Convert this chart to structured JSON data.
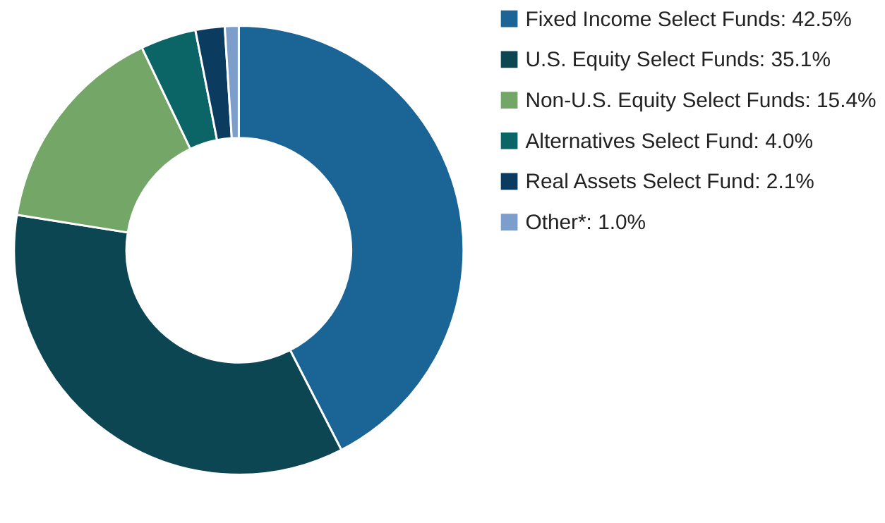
{
  "chart_data": {
    "type": "donut",
    "categories": [
      "Fixed Income Select Funds: 42.5%",
      "U.S. Equity Select Funds: 35.1%",
      "Non-U.S. Equity Select Funds: 15.4%",
      "Alternatives Select Fund: 4.0%",
      "Real Assets Select Fund: 2.1%",
      "Other*: 1.0%"
    ],
    "values": [
      42.5,
      35.1,
      15.4,
      4.0,
      2.1,
      1.0
    ],
    "colors": [
      "#1a6496",
      "#0b4652",
      "#74a667",
      "#0b6566",
      "#0b3b5f",
      "#7d9dcb"
    ],
    "legend": "right"
  }
}
